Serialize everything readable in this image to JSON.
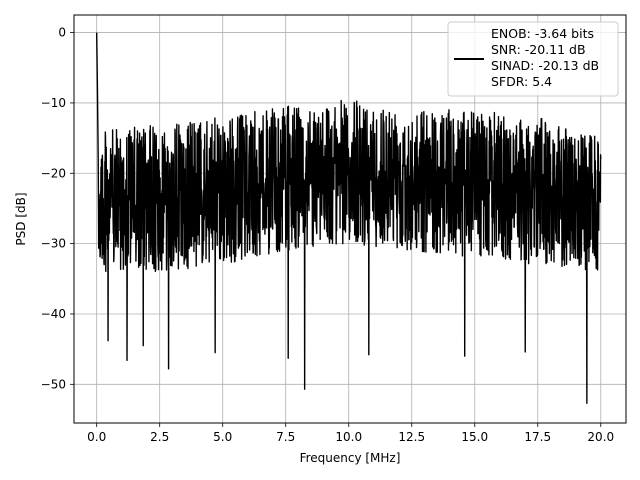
{
  "chart_data": {
    "type": "line",
    "xlabel": "Frequency [MHz]",
    "ylabel": "PSD [dB]",
    "xlim": [
      -0.9,
      21.0
    ],
    "ylim": [
      -55.5,
      2.5
    ],
    "xticks": [
      0.0,
      2.5,
      5.0,
      7.5,
      10.0,
      12.5,
      15.0,
      17.5,
      20.0
    ],
    "xtick_labels": [
      "0.0",
      "2.5",
      "5.0",
      "7.5",
      "10.0",
      "12.5",
      "15.0",
      "17.5",
      "20.0"
    ],
    "yticks": [
      0,
      -10,
      -20,
      -30,
      -40,
      -50
    ],
    "ytick_labels": [
      "0",
      "−10",
      "−20",
      "−30",
      "−40",
      "−50"
    ],
    "grid": true,
    "legend_position": "top-right",
    "series": [
      {
        "name": "ENOB: -3.64 bits\nSNR: -20.11 dB\nSINAD: -20.13 dB\nSFDR: 5.4",
        "color": "#000000",
        "x_range": [
          0.0,
          20.0
        ],
        "peak": {
          "x": 0.02,
          "y": 0.0
        },
        "mean_level": -22,
        "upper_envelope": [
          [
            0.1,
            -14
          ],
          [
            2.5,
            -13
          ],
          [
            5.0,
            -12
          ],
          [
            7.5,
            -10.5
          ],
          [
            10.0,
            -9.5
          ],
          [
            12.5,
            -10.5
          ],
          [
            15.0,
            -11
          ],
          [
            17.5,
            -12
          ],
          [
            20.0,
            -15
          ]
        ],
        "lower_envelope": [
          [
            0.1,
            -34
          ],
          [
            2.5,
            -34
          ],
          [
            5.0,
            -33
          ],
          [
            7.5,
            -31
          ],
          [
            10.0,
            -30
          ],
          [
            12.5,
            -31
          ],
          [
            15.0,
            -32
          ],
          [
            17.5,
            -33
          ],
          [
            20.0,
            -34
          ]
        ],
        "deep_nulls": [
          {
            "x": 0.45,
            "y": -43.8
          },
          {
            "x": 1.2,
            "y": -46.6
          },
          {
            "x": 1.85,
            "y": -44.5
          },
          {
            "x": 2.85,
            "y": -47.8
          },
          {
            "x": 4.7,
            "y": -45.5
          },
          {
            "x": 7.6,
            "y": -46.3
          },
          {
            "x": 8.25,
            "y": -50.7
          },
          {
            "x": 10.8,
            "y": -45.8
          },
          {
            "x": 14.6,
            "y": -46.0
          },
          {
            "x": 17.0,
            "y": -45.4
          },
          {
            "x": 19.45,
            "y": -52.7
          }
        ]
      }
    ]
  },
  "legend": {
    "lines": [
      "ENOB: -3.64 bits",
      "SNR: -20.11 dB",
      "SINAD: -20.13 dB",
      "SFDR: 5.4"
    ]
  }
}
